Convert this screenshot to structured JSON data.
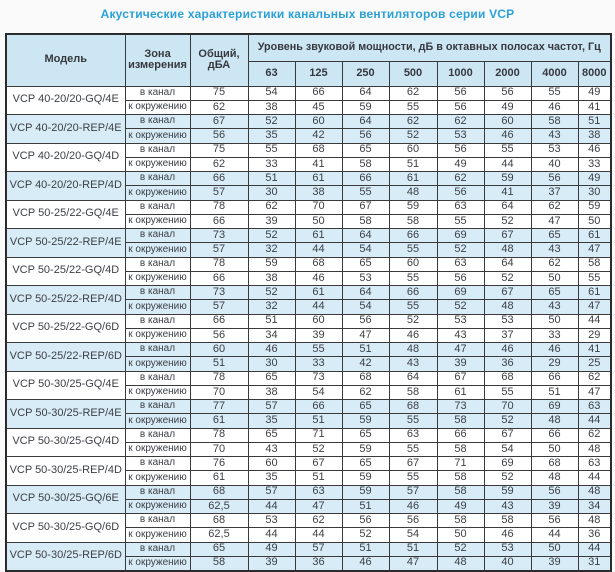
{
  "title": "Акустические характеристики канальных вентиляторов  серии VCP",
  "colors": {
    "title_blue": "#2aa1d9",
    "header_bg": "#cde6f4",
    "shaded_row_bg": "#d8ecf8",
    "border": "#3a3a3a",
    "text": "#3d4045"
  },
  "table": {
    "headers": {
      "model": "Модель",
      "zone": "Зона\nизмерения",
      "total": "Общий,\nдБА",
      "spl": "Уровень звуковой мощности, дБ в октавных полосах частот, Гц"
    },
    "frequencies": [
      "63",
      "125",
      "250",
      "500",
      "1000",
      "2000",
      "4000",
      "8000"
    ],
    "models": [
      {
        "name": "VCP 40-20/20-GQ/4E",
        "shaded": false,
        "rows": [
          {
            "zone": "в канал",
            "total": "75",
            "levels": [
              54,
              66,
              64,
              62,
              56,
              56,
              55,
              49
            ]
          },
          {
            "zone": "к окружению",
            "total": "62",
            "levels": [
              38,
              45,
              59,
              55,
              56,
              49,
              46,
              41
            ]
          }
        ]
      },
      {
        "name": "VCP 40-20/20-REP/4E",
        "shaded": true,
        "rows": [
          {
            "zone": "в канал",
            "total": "67",
            "levels": [
              52,
              60,
              64,
              62,
              62,
              60,
              58,
              51
            ]
          },
          {
            "zone": "к окружению",
            "total": "56",
            "levels": [
              35,
              42,
              56,
              52,
              53,
              46,
              43,
              38
            ]
          }
        ]
      },
      {
        "name": "VCP 40-20/20-GQ/4D",
        "shaded": false,
        "rows": [
          {
            "zone": "в канал",
            "total": "75",
            "levels": [
              55,
              68,
              65,
              60,
              56,
              55,
              53,
              46
            ]
          },
          {
            "zone": "к окружению",
            "total": "62",
            "levels": [
              33,
              41,
              58,
              51,
              49,
              44,
              40,
              33
            ]
          }
        ]
      },
      {
        "name": "VCP 40-20/20-REP/4D",
        "shaded": true,
        "rows": [
          {
            "zone": "в канал",
            "total": "66",
            "levels": [
              51,
              61,
              66,
              61,
              62,
              59,
              56,
              49
            ]
          },
          {
            "zone": "к окружению",
            "total": "57",
            "levels": [
              30,
              38,
              55,
              48,
              56,
              41,
              37,
              30
            ]
          }
        ]
      },
      {
        "name": "VCP 50-25/22-GQ/4E",
        "shaded": false,
        "rows": [
          {
            "zone": "в канал",
            "total": "78",
            "levels": [
              62,
              70,
              67,
              59,
              63,
              64,
              62,
              59
            ]
          },
          {
            "zone": "к окружению",
            "total": "66",
            "levels": [
              39,
              50,
              58,
              58,
              55,
              52,
              47,
              50
            ]
          }
        ]
      },
      {
        "name": "VCP 50-25/22-REP/4E",
        "shaded": true,
        "rows": [
          {
            "zone": "в канал",
            "total": "73",
            "levels": [
              52,
              61,
              64,
              66,
              69,
              67,
              65,
              61
            ]
          },
          {
            "zone": "к окружению",
            "total": "57",
            "levels": [
              32,
              44,
              54,
              55,
              52,
              48,
              43,
              47
            ]
          }
        ]
      },
      {
        "name": "VCP 50-25/22-GQ/4D",
        "shaded": false,
        "rows": [
          {
            "zone": "в канал",
            "total": "78",
            "levels": [
              59,
              68,
              65,
              60,
              63,
              64,
              62,
              58
            ]
          },
          {
            "zone": "к окружению",
            "total": "66",
            "levels": [
              38,
              46,
              53,
              55,
              56,
              52,
              50,
              55
            ]
          }
        ]
      },
      {
        "name": "VCP 50-25/22-REP/4D",
        "shaded": true,
        "rows": [
          {
            "zone": "в канал",
            "total": "73",
            "levels": [
              52,
              61,
              64,
              66,
              69,
              67,
              65,
              61
            ]
          },
          {
            "zone": "к окружению",
            "total": "57",
            "levels": [
              32,
              44,
              54,
              55,
              52,
              48,
              43,
              47
            ]
          }
        ]
      },
      {
        "name": "VCP 50-25/22-GQ/6D",
        "shaded": false,
        "rows": [
          {
            "zone": "в канал",
            "total": "66",
            "levels": [
              51,
              60,
              56,
              52,
              53,
              53,
              50,
              44
            ]
          },
          {
            "zone": "к окружению",
            "total": "56",
            "levels": [
              34,
              39,
              47,
              46,
              43,
              37,
              33,
              29
            ]
          }
        ]
      },
      {
        "name": "VCP 50-25/22-REP/6D",
        "shaded": true,
        "rows": [
          {
            "zone": "в канал",
            "total": "60",
            "levels": [
              46,
              55,
              51,
              48,
              47,
              46,
              46,
              41
            ]
          },
          {
            "zone": "к окружению",
            "total": "51",
            "levels": [
              30,
              33,
              42,
              43,
              39,
              36,
              29,
              25
            ]
          }
        ]
      },
      {
        "name": "VCP 50-30/25-GQ/4E",
        "shaded": false,
        "rows": [
          {
            "zone": "в канал",
            "total": "78",
            "levels": [
              65,
              73,
              68,
              64,
              67,
              68,
              66,
              62
            ]
          },
          {
            "zone": "к окружению",
            "total": "70",
            "levels": [
              38,
              54,
              62,
              58,
              61,
              55,
              51,
              47
            ]
          }
        ]
      },
      {
        "name": "VCP 50-30/25-REP/4E",
        "shaded": true,
        "rows": [
          {
            "zone": "в канал",
            "total": "77",
            "levels": [
              57,
              66,
              65,
              68,
              73,
              70,
              69,
              63
            ]
          },
          {
            "zone": "к окружению",
            "total": "61",
            "levels": [
              35,
              51,
              59,
              55,
              58,
              52,
              48,
              44
            ]
          }
        ]
      },
      {
        "name": "VCP 50-30/25-GQ/4D",
        "shaded": false,
        "rows": [
          {
            "zone": "в канал",
            "total": "78",
            "levels": [
              65,
              71,
              65,
              63,
              66,
              67,
              66,
              62
            ]
          },
          {
            "zone": "к окружению",
            "total": "70",
            "levels": [
              43,
              52,
              59,
              55,
              58,
              54,
              50,
              48
            ]
          }
        ]
      },
      {
        "name": "VCP 50-30/25-REP/4D",
        "shaded": false,
        "rows": [
          {
            "zone": "в канал",
            "total": "76",
            "levels": [
              60,
              67,
              65,
              67,
              71,
              69,
              68,
              63
            ]
          },
          {
            "zone": "к окружению",
            "total": "61",
            "levels": [
              35,
              51,
              59,
              55,
              58,
              52,
              48,
              44
            ]
          }
        ]
      },
      {
        "name": "VCP 50-30/25-GQ/6E",
        "shaded": true,
        "rows": [
          {
            "zone": "в канал",
            "total": "68",
            "levels": [
              57,
              63,
              59,
              57,
              58,
              59,
              56,
              48
            ]
          },
          {
            "zone": "к окружению",
            "total": "62,5",
            "levels": [
              44,
              47,
              51,
              46,
              49,
              43,
              39,
              34
            ]
          }
        ]
      },
      {
        "name": "VCP 50-30/25-GQ/6D",
        "shaded": false,
        "rows": [
          {
            "zone": "в канал",
            "total": "68",
            "levels": [
              53,
              62,
              56,
              56,
              58,
              58,
              56,
              48
            ]
          },
          {
            "zone": "к окружению",
            "total": "62,5",
            "levels": [
              44,
              44,
              52,
              54,
              50,
              46,
              44,
              36
            ]
          }
        ]
      },
      {
        "name": "VCP 50-30/25-REP/6D",
        "shaded": true,
        "rows": [
          {
            "zone": "в канал",
            "total": "65",
            "levels": [
              49,
              57,
              51,
              51,
              52,
              53,
              50,
              44
            ]
          },
          {
            "zone": "к окружению",
            "total": "58",
            "levels": [
              39,
              36,
              46,
              47,
              48,
              40,
              39,
              31
            ]
          }
        ]
      }
    ]
  }
}
